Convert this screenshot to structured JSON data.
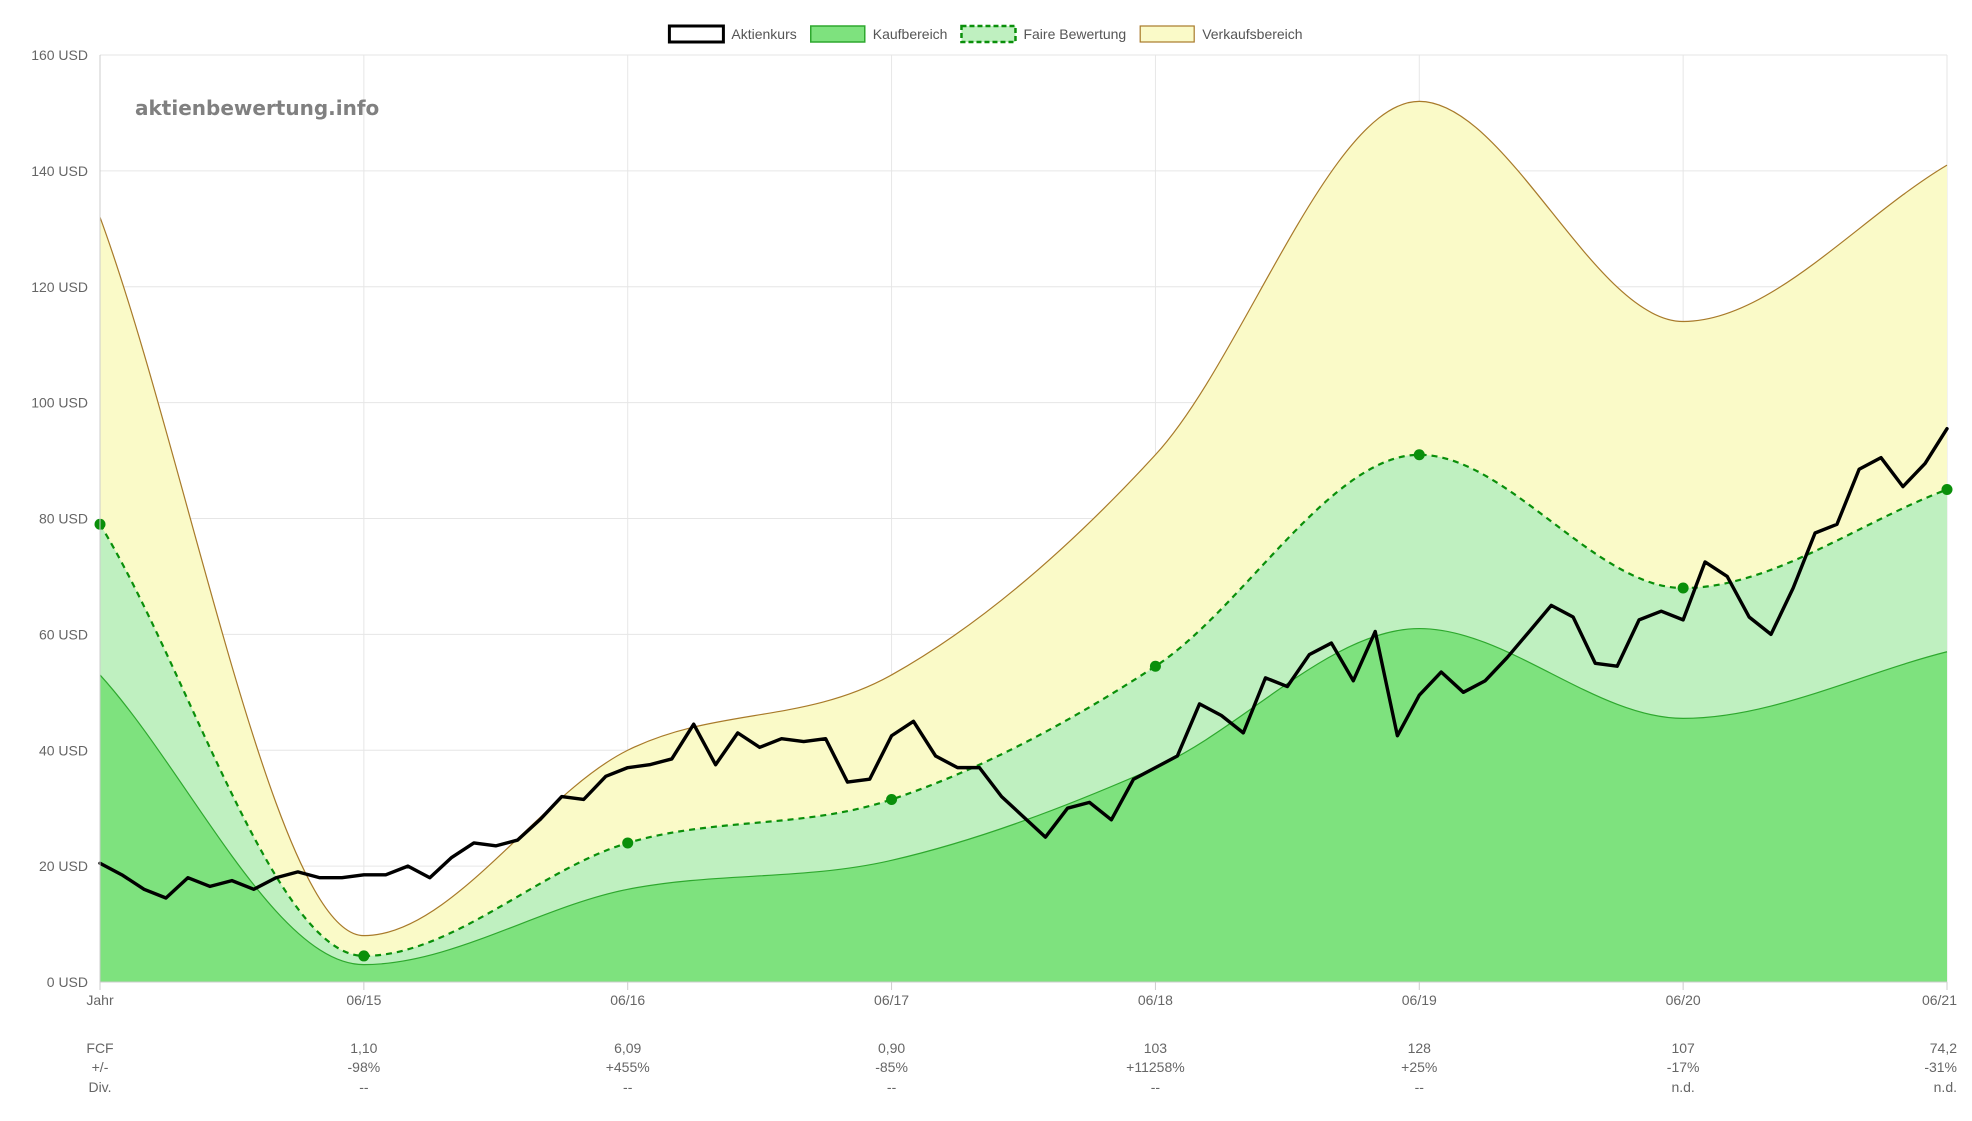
{
  "watermark": "aktienbewertung.info",
  "colors": {
    "price_line": "#000000",
    "buy_fill": "#7ee27e",
    "buy_line": "#2ea82e",
    "fair_fill": "#bff0c0",
    "fair_line": "#0a8f0a",
    "fair_point": "#0a8f0a",
    "sell_fill": "#fafac8",
    "sell_line": "#a87a2a",
    "grid": "#e6e6e6",
    "axis": "#cccccc"
  },
  "chart_data": {
    "type": "line",
    "title": "",
    "xlabel": "",
    "ylabel": "",
    "ylim": [
      0,
      160
    ],
    "y_ticks": [
      0,
      20,
      40,
      60,
      80,
      100,
      120,
      140,
      160
    ],
    "y_unit": "USD",
    "y_tick_labels": [
      "0 USD",
      "20 USD",
      "40 USD",
      "60 USD",
      "80 USD",
      "100 USD",
      "120 USD",
      "140 USD",
      "160 USD"
    ],
    "x_tick_labels": [
      "Jahr",
      "06/15",
      "06/16",
      "06/17",
      "06/18",
      "06/19",
      "06/20",
      "06/21"
    ],
    "legend": [
      {
        "label": "Aktienkurs",
        "style": "price"
      },
      {
        "label": "Kaufbereich",
        "style": "buy"
      },
      {
        "label": "Faire Bewertung",
        "style": "fair"
      },
      {
        "label": "Verkaufsbereich",
        "style": "sell"
      }
    ],
    "legend_position": "top",
    "series": [
      {
        "name": "Verkaufsbereich",
        "type": "area",
        "x": [
          0,
          1,
          2,
          3,
          4,
          5,
          6,
          7
        ],
        "values": [
          132,
          8,
          40,
          53,
          91,
          152,
          114,
          141
        ]
      },
      {
        "name": "Faire Bewertung",
        "type": "area-dashed-points",
        "x": [
          0,
          1,
          2,
          3,
          4,
          5,
          6,
          7
        ],
        "values": [
          79,
          4.5,
          24,
          31.5,
          54.5,
          91,
          68,
          85
        ]
      },
      {
        "name": "Kaufbereich",
        "type": "area",
        "x": [
          0,
          1,
          2,
          3,
          4,
          5,
          6,
          7
        ],
        "values": [
          53,
          3,
          16,
          21,
          37,
          61,
          45.5,
          57
        ]
      },
      {
        "name": "Aktienkurs",
        "type": "line",
        "x": [
          0,
          0.083,
          0.167,
          0.25,
          0.333,
          0.417,
          0.5,
          0.583,
          0.667,
          0.75,
          0.833,
          0.917,
          1.0,
          1.083,
          1.167,
          1.25,
          1.333,
          1.417,
          1.5,
          1.583,
          1.667,
          1.75,
          1.833,
          1.917,
          2.0,
          2.083,
          2.167,
          2.25,
          2.333,
          2.417,
          2.5,
          2.583,
          2.667,
          2.75,
          2.833,
          2.917,
          3.0,
          3.083,
          3.167,
          3.25,
          3.333,
          3.417,
          3.5,
          3.583,
          3.667,
          3.75,
          3.833,
          3.917,
          4.0,
          4.083,
          4.167,
          4.25,
          4.333,
          4.417,
          4.5,
          4.583,
          4.667,
          4.75,
          4.833,
          4.917,
          5.0,
          5.083,
          5.167,
          5.25,
          5.333,
          5.417,
          5.5,
          5.583,
          5.667,
          5.75,
          5.833,
          5.917,
          6.0,
          6.083,
          6.167,
          6.25,
          6.333,
          6.417,
          6.5,
          6.583,
          6.667,
          6.75,
          6.833,
          6.917,
          7.0
        ],
        "values": [
          20.5,
          18.5,
          16,
          14.5,
          18,
          16.5,
          17.5,
          16,
          18,
          19,
          18,
          18,
          18.5,
          18.5,
          20,
          18,
          21.5,
          24,
          23.5,
          24.5,
          28,
          32,
          31.5,
          35.5,
          37,
          37.5,
          38.5,
          44.5,
          37.5,
          43,
          40.5,
          42,
          41.5,
          42,
          34.5,
          35,
          42.5,
          45,
          39,
          37,
          37,
          32,
          28.5,
          25,
          30,
          31,
          28,
          35,
          37,
          39,
          48,
          46,
          43,
          52.5,
          51,
          56.5,
          58.5,
          52,
          60.5,
          42.5,
          49.5,
          53.5,
          50,
          52,
          56,
          60.5,
          65,
          63,
          55,
          54.5,
          62.5,
          64,
          62.5,
          72.5,
          70,
          63,
          60,
          68,
          77.5,
          79,
          88.5,
          90.5,
          85.5,
          89.5,
          95.5
        ]
      }
    ],
    "bottom_table": {
      "row_labels": [
        "FCF",
        "+/-",
        "Div."
      ],
      "columns": [
        {
          "FCF": "1,10",
          "change": "-98%",
          "div": "--"
        },
        {
          "FCF": "6,09",
          "change": "+455%",
          "div": "--"
        },
        {
          "FCF": "0,90",
          "change": "-85%",
          "div": "--"
        },
        {
          "FCF": "103",
          "change": "+11258%",
          "div": "--"
        },
        {
          "FCF": "128",
          "change": "+25%",
          "div": "--"
        },
        {
          "FCF": "107",
          "change": "-17%",
          "div": "n.d."
        },
        {
          "FCF": "74,2",
          "change": "-31%",
          "div": "n.d."
        }
      ]
    }
  }
}
